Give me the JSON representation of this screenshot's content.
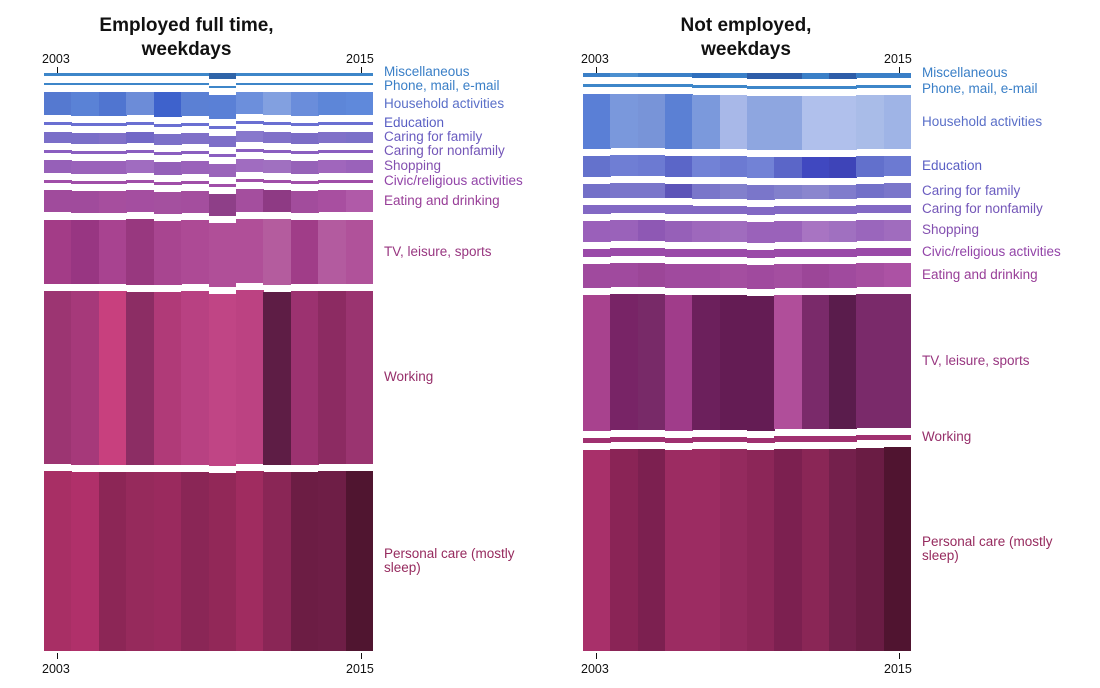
{
  "years": [
    2003,
    2004,
    2005,
    2006,
    2007,
    2008,
    2009,
    2010,
    2011,
    2012,
    2013,
    2015
  ],
  "axis_labels": {
    "start": "2003",
    "end": "2015"
  },
  "category_colors": {
    "Miscellaneous": "#3a7fc7",
    "Phone, mail, e-mail": "#3a7fc7",
    "Household activities": "#5b7fd4",
    "Education": "#5d6fd1",
    "Caring for family": "#6a68c8",
    "Caring for nonfamily": "#7860c0",
    "Shopping": "#8a5ab8",
    "Civic/religious activities": "#9a4eb0",
    "Eating and drinking": "#a0449f",
    "TV, leisure, sports": "#a13e8c",
    "Working": "#9b3573",
    "Personal care (mostly sleep)": "#9b2f64"
  },
  "chart_data": [
    {
      "type": "area",
      "title": "Employed full time,\nweekdays",
      "xlabel": "",
      "ylabel": "",
      "x": [
        2003,
        2004,
        2005,
        2006,
        2007,
        2008,
        2009,
        2010,
        2011,
        2012,
        2013,
        2015
      ],
      "x_tick_labels": [
        "2003",
        "2015"
      ],
      "series": [
        {
          "name": "Miscellaneous",
          "values": [
            3,
            3,
            3,
            3,
            3,
            3,
            6,
            3,
            3,
            3,
            3,
            3
          ],
          "colors": [
            "#3d86c9",
            "#3d86c9",
            "#3d86c9",
            "#3d86c9",
            "#3d86c9",
            "#3d86c9",
            "#2f64a8",
            "#3d86c9",
            "#3d86c9",
            "#3d86c9",
            "#3d86c9",
            "#3d86c9"
          ]
        },
        {
          "name": "Phone, mail, e-mail",
          "values": [
            2,
            2,
            2,
            2,
            2,
            2,
            2,
            2,
            2,
            2,
            2,
            2
          ],
          "colors": [
            "#3d86c9",
            "#3d86c9",
            "#3d86c9",
            "#3d86c9",
            "#3d86c9",
            "#3d86c9",
            "#3d86c9",
            "#3d86c9",
            "#3d86c9",
            "#3d86c9",
            "#3d86c9",
            "#3d86c9"
          ]
        },
        {
          "name": "Household activities",
          "values": [
            21,
            22,
            22,
            21,
            23,
            22,
            22,
            20,
            21,
            22,
            21,
            21
          ],
          "colors": [
            "#5579d0",
            "#5a82d6",
            "#5075d0",
            "#6c8cd8",
            "#3e62cc",
            "#5b80d4",
            "#5a80d6",
            "#6c8fdc",
            "#82a0e0",
            "#6a8ddb",
            "#5d86d8",
            "#5f89db"
          ]
        },
        {
          "name": "Education",
          "values": [
            3,
            3,
            3,
            3,
            3,
            3,
            3,
            3,
            3,
            3,
            3,
            3
          ],
          "colors": [
            "#6a6fd2",
            "#6a6fd2",
            "#6a6fd2",
            "#6a6fd2",
            "#6a6fd2",
            "#6a6fd2",
            "#6a6fd2",
            "#6a6fd2",
            "#6a6fd2",
            "#6a6fd2",
            "#6a6fd2",
            "#6a6fd2"
          ]
        },
        {
          "name": "Caring for family",
          "values": [
            10,
            10,
            10,
            10,
            10,
            10,
            10,
            10,
            10,
            10,
            10,
            10
          ],
          "colors": [
            "#7a6ec8",
            "#7a6ec8",
            "#8070c8",
            "#7268c6",
            "#7b70c8",
            "#8070c8",
            "#7d6ec8",
            "#8878cc",
            "#8070c8",
            "#7b6cc6",
            "#8070c8",
            "#7b70c8"
          ]
        },
        {
          "name": "Caring for nonfamily",
          "values": [
            3,
            3,
            3,
            3,
            3,
            3,
            3,
            3,
            3,
            3,
            3,
            3
          ],
          "colors": [
            "#8a5ec0",
            "#8a5ec0",
            "#8a5ec0",
            "#8a5ec0",
            "#8a5ec0",
            "#8a5ec0",
            "#8a5ec0",
            "#8a5ec0",
            "#8a5ec0",
            "#8a5ec0",
            "#8a5ec0",
            "#8a5ec0"
          ]
        },
        {
          "name": "Shopping",
          "values": [
            12,
            12,
            12,
            12,
            12,
            12,
            12,
            12,
            12,
            12,
            12,
            12
          ],
          "colors": [
            "#9660b8",
            "#9a62ba",
            "#9a62ba",
            "#a06cc0",
            "#9460b8",
            "#9a62ba",
            "#9a64ba",
            "#a06cc0",
            "#a070c0",
            "#9662b8",
            "#a066bc",
            "#9a62ba"
          ]
        },
        {
          "name": "Civic/religious activities",
          "values": [
            3,
            3,
            3,
            3,
            3,
            3,
            3,
            3,
            3,
            3,
            3,
            3
          ],
          "colors": [
            "#a04ea8",
            "#a04ea8",
            "#a04ea8",
            "#a04ea8",
            "#a04ea8",
            "#a04ea8",
            "#a04ea8",
            "#a04ea8",
            "#a04ea8",
            "#a04ea8",
            "#a04ea8",
            "#a04ea8"
          ]
        },
        {
          "name": "Eating and drinking",
          "values": [
            21,
            21,
            21,
            21,
            21,
            21,
            21,
            21,
            21,
            21,
            21,
            21
          ],
          "colors": [
            "#a04b9c",
            "#a04b9c",
            "#a64e9e",
            "#a44ea0",
            "#a4509f",
            "#a44e9e",
            "#8e3f88",
            "#a44e9e",
            "#8e3a84",
            "#a24c9c",
            "#a84fa0",
            "#b05aa8"
          ]
        },
        {
          "name": "TV, leisure, sports",
          "values": [
            60,
            60,
            60,
            62,
            60,
            60,
            60,
            60,
            62,
            60,
            60,
            60
          ],
          "colors": [
            "#a33c87",
            "#983682",
            "#a84390",
            "#98387f",
            "#a84590",
            "#ad4a95",
            "#b04f98",
            "#b04f98",
            "#b45c9e",
            "#a03d88",
            "#b35b9f",
            "#b0529a"
          ]
        },
        {
          "name": "Working",
          "values": [
            162,
            162,
            162,
            162,
            162,
            162,
            162,
            162,
            162,
            162,
            162,
            162
          ],
          "colors": [
            "#9c3572",
            "#a6397a",
            "#c8407e",
            "#8c2d64",
            "#b03a78",
            "#b84182",
            "#c04585",
            "#bc4282",
            "#5e1d45",
            "#9c3270",
            "#8c2b62",
            "#9a3470"
          ]
        },
        {
          "name": "Personal care (mostly sleep)",
          "values": [
            168,
            168,
            168,
            168,
            168,
            168,
            168,
            168,
            168,
            168,
            168,
            168
          ],
          "colors": [
            "#a82f65",
            "#b0306a",
            "#8c2656",
            "#962a5c",
            "#9a2a5e",
            "#8a2656",
            "#922858",
            "#a02c60",
            "#8a2656",
            "#6c1d44",
            "#6e1e46",
            "#501530"
          ]
        }
      ]
    },
    {
      "type": "area",
      "title": "Not employed,\nweekdays",
      "xlabel": "",
      "ylabel": "",
      "x": [
        2003,
        2004,
        2005,
        2006,
        2007,
        2008,
        2009,
        2010,
        2011,
        2012,
        2013,
        2015
      ],
      "x_tick_labels": [
        "2003",
        "2015"
      ],
      "series": [
        {
          "name": "Miscellaneous",
          "values": [
            4,
            4,
            4,
            4,
            5,
            5,
            6,
            6,
            6,
            6,
            5,
            5
          ],
          "colors": [
            "#3a7fc7",
            "#4c90d0",
            "#3a7fc7",
            "#3a7fc7",
            "#2f6fbd",
            "#3a7fc7",
            "#2d5da8",
            "#2d5da8",
            "#3a7fc7",
            "#2d5da8",
            "#3a7fc7",
            "#3a7fc7"
          ]
        },
        {
          "name": "Phone, mail, e-mail",
          "values": [
            3,
            3,
            3,
            3,
            3,
            3,
            3,
            3,
            3,
            3,
            3,
            3
          ],
          "colors": [
            "#3d86c9",
            "#3d86c9",
            "#3d86c9",
            "#3d86c9",
            "#3d86c9",
            "#3d86c9",
            "#3d86c9",
            "#3d86c9",
            "#3d86c9",
            "#3d86c9",
            "#3d86c9",
            "#3d86c9"
          ]
        },
        {
          "name": "Household activities",
          "values": [
            52,
            52,
            52,
            52,
            52,
            52,
            52,
            52,
            52,
            52,
            52,
            52
          ],
          "colors": [
            "#5a7fd6",
            "#7a98dc",
            "#7894d8",
            "#5b80d4",
            "#7b99dc",
            "#a8b8e8",
            "#8ea6e0",
            "#8ea6e0",
            "#b0c0ec",
            "#b0c0ec",
            "#a9bce8",
            "#9fb4e6"
          ]
        },
        {
          "name": "Education",
          "values": [
            20,
            20,
            20,
            20,
            20,
            20,
            20,
            20,
            20,
            20,
            20,
            20
          ],
          "colors": [
            "#6472cc",
            "#6f7ed4",
            "#6c7ad2",
            "#5b66c8",
            "#7282d6",
            "#6c7ad2",
            "#7282d6",
            "#5b66c8",
            "#4048c0",
            "#3e44b8",
            "#6270cc",
            "#6c7ad2"
          ]
        },
        {
          "name": "Caring for family",
          "values": [
            14,
            14,
            14,
            14,
            14,
            14,
            14,
            14,
            14,
            14,
            14,
            14
          ],
          "colors": [
            "#7370c8",
            "#7a76ca",
            "#7a76ca",
            "#5c54b8",
            "#7a76ca",
            "#8280cc",
            "#7a76ca",
            "#8280cc",
            "#8a86ce",
            "#807ccc",
            "#7270c8",
            "#7a76ca"
          ]
        },
        {
          "name": "Caring for nonfamily",
          "values": [
            8,
            8,
            8,
            8,
            8,
            8,
            8,
            8,
            8,
            8,
            8,
            8
          ],
          "colors": [
            "#8268c4",
            "#8268c4",
            "#8268c4",
            "#8268c4",
            "#8268c4",
            "#8268c4",
            "#8268c4",
            "#8268c4",
            "#8268c4",
            "#8268c4",
            "#8268c4",
            "#8268c4"
          ]
        },
        {
          "name": "Shopping",
          "values": [
            20,
            20,
            20,
            20,
            20,
            20,
            20,
            20,
            20,
            20,
            20,
            20
          ],
          "colors": [
            "#9a60ba",
            "#9a62ba",
            "#8e58b4",
            "#9660b8",
            "#9e68bc",
            "#a06cbe",
            "#9a62ba",
            "#9a62ba",
            "#a874c2",
            "#a070c0",
            "#9a66bc",
            "#a06cbe"
          ]
        },
        {
          "name": "Civic/religious activities",
          "values": [
            8,
            8,
            8,
            8,
            8,
            8,
            8,
            8,
            8,
            8,
            8,
            8
          ],
          "colors": [
            "#9a4aa8",
            "#9a4aa8",
            "#9a4aa8",
            "#9a4aa8",
            "#9a4aa8",
            "#9a4aa8",
            "#9a4aa8",
            "#9a4aa8",
            "#9a4aa8",
            "#9a4aa8",
            "#9a4aa8",
            "#9a4aa8"
          ]
        },
        {
          "name": "Eating and drinking",
          "values": [
            23,
            23,
            23,
            23,
            23,
            23,
            23,
            23,
            23,
            23,
            23,
            23
          ],
          "colors": [
            "#a04a9e",
            "#a04a9e",
            "#9c4698",
            "#a04a9e",
            "#a04a9e",
            "#a44ea0",
            "#a04a9e",
            "#a44ea0",
            "#9c4698",
            "#a04a9e",
            "#a64ea0",
            "#ac52a4"
          ]
        },
        {
          "name": "TV, leisure, sports",
          "values": [
            130,
            130,
            130,
            130,
            130,
            130,
            130,
            130,
            130,
            130,
            130,
            130
          ],
          "colors": [
            "#a8428e",
            "#782466",
            "#782a68",
            "#a03c8a",
            "#6c205c",
            "#641c54",
            "#641c54",
            "#b04e9a",
            "#7a2a6a",
            "#5a1c4c",
            "#7a2a6a",
            "#7a2a6a"
          ]
        },
        {
          "name": "Working",
          "values": [
            5,
            5,
            5,
            5,
            5,
            5,
            5,
            5,
            5,
            5,
            5,
            5
          ],
          "colors": [
            "#a03070",
            "#a03070",
            "#a03070",
            "#a03070",
            "#a03070",
            "#a03070",
            "#a03070",
            "#a03070",
            "#a03070",
            "#a03070",
            "#a03070",
            "#a03070"
          ]
        },
        {
          "name": "Personal care (mostly sleep)",
          "values": [
            192,
            194,
            194,
            192,
            194,
            194,
            194,
            196,
            196,
            196,
            197,
            198
          ],
          "colors": [
            "#a8306a",
            "#8a2456",
            "#7c2050",
            "#9c2c62",
            "#9c2c62",
            "#942a5e",
            "#8c2658",
            "#7c2050",
            "#8a2656",
            "#74204c",
            "#6a1c44",
            "#501430"
          ]
        }
      ]
    }
  ]
}
